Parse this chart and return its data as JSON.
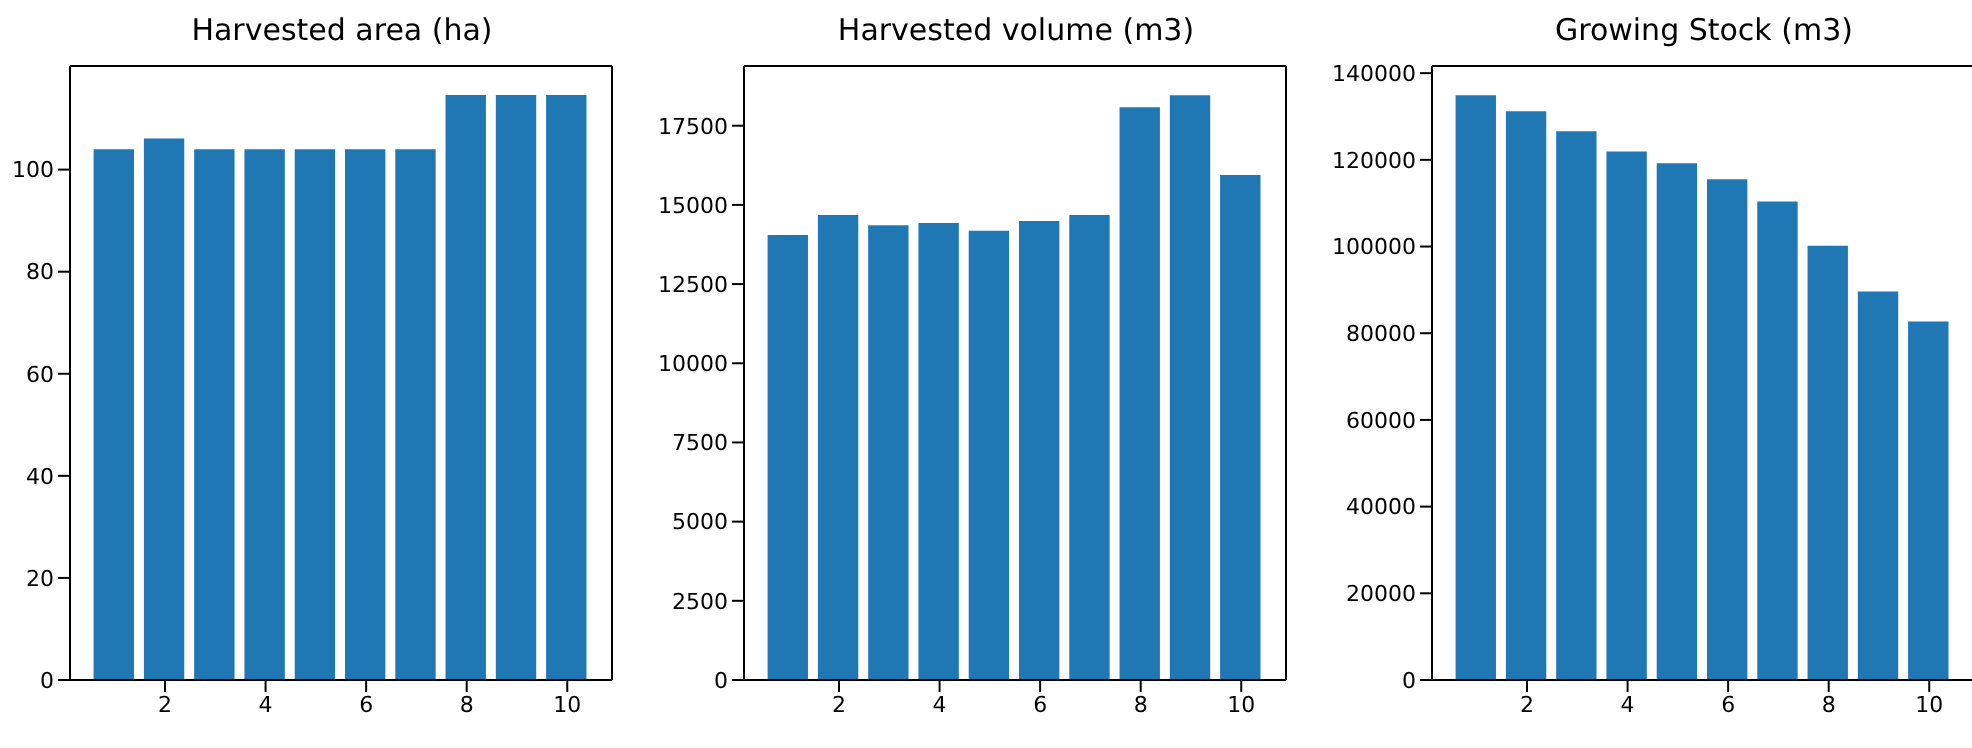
{
  "chart_data": [
    {
      "type": "bar",
      "title": "Harvested area (ha)",
      "x": [
        1,
        2,
        3,
        4,
        5,
        6,
        7,
        8,
        9,
        10
      ],
      "color": "#1f77b4",
      "values": [
        104.0,
        106.1,
        104.0,
        104.0,
        104.0,
        104.0,
        104.0,
        114.6,
        114.6,
        114.6
      ],
      "xlim": [
        0.11,
        10.89
      ],
      "xticks": [
        2,
        4,
        6,
        8,
        10
      ],
      "ylim": [
        0,
        120.3
      ],
      "yticks": [
        0,
        20,
        40,
        60,
        80,
        100
      ],
      "grid": false,
      "legend": false
    },
    {
      "type": "bar",
      "title": "Harvested volume (m3)",
      "x": [
        1,
        2,
        3,
        4,
        5,
        6,
        7,
        8,
        9,
        10
      ],
      "color": "#1f77b4",
      "values": [
        14050,
        14680,
        14360,
        14430,
        14180,
        14490,
        14680,
        18080,
        18460,
        15940
      ],
      "xlim": [
        0.11,
        10.89
      ],
      "xticks": [
        2,
        4,
        6,
        8,
        10
      ],
      "ylim": [
        0,
        19385
      ],
      "yticks": [
        0,
        2500,
        5000,
        7500,
        10000,
        12500,
        15000,
        17500
      ],
      "grid": false,
      "legend": false
    },
    {
      "type": "bar",
      "title": "Growing Stock (m3)",
      "x": [
        1,
        2,
        3,
        4,
        5,
        6,
        7,
        8,
        9,
        10
      ],
      "color": "#1f77b4",
      "values": [
        134900,
        131200,
        126600,
        121900,
        119200,
        115500,
        110400,
        100200,
        89600,
        82700
      ],
      "xlim": [
        0.11,
        10.89
      ],
      "xticks": [
        2,
        4,
        6,
        8,
        10
      ],
      "ylim": [
        0,
        141650
      ],
      "yticks": [
        0,
        20000,
        40000,
        60000,
        80000,
        100000,
        120000,
        140000
      ],
      "grid": false,
      "legend": false
    }
  ]
}
